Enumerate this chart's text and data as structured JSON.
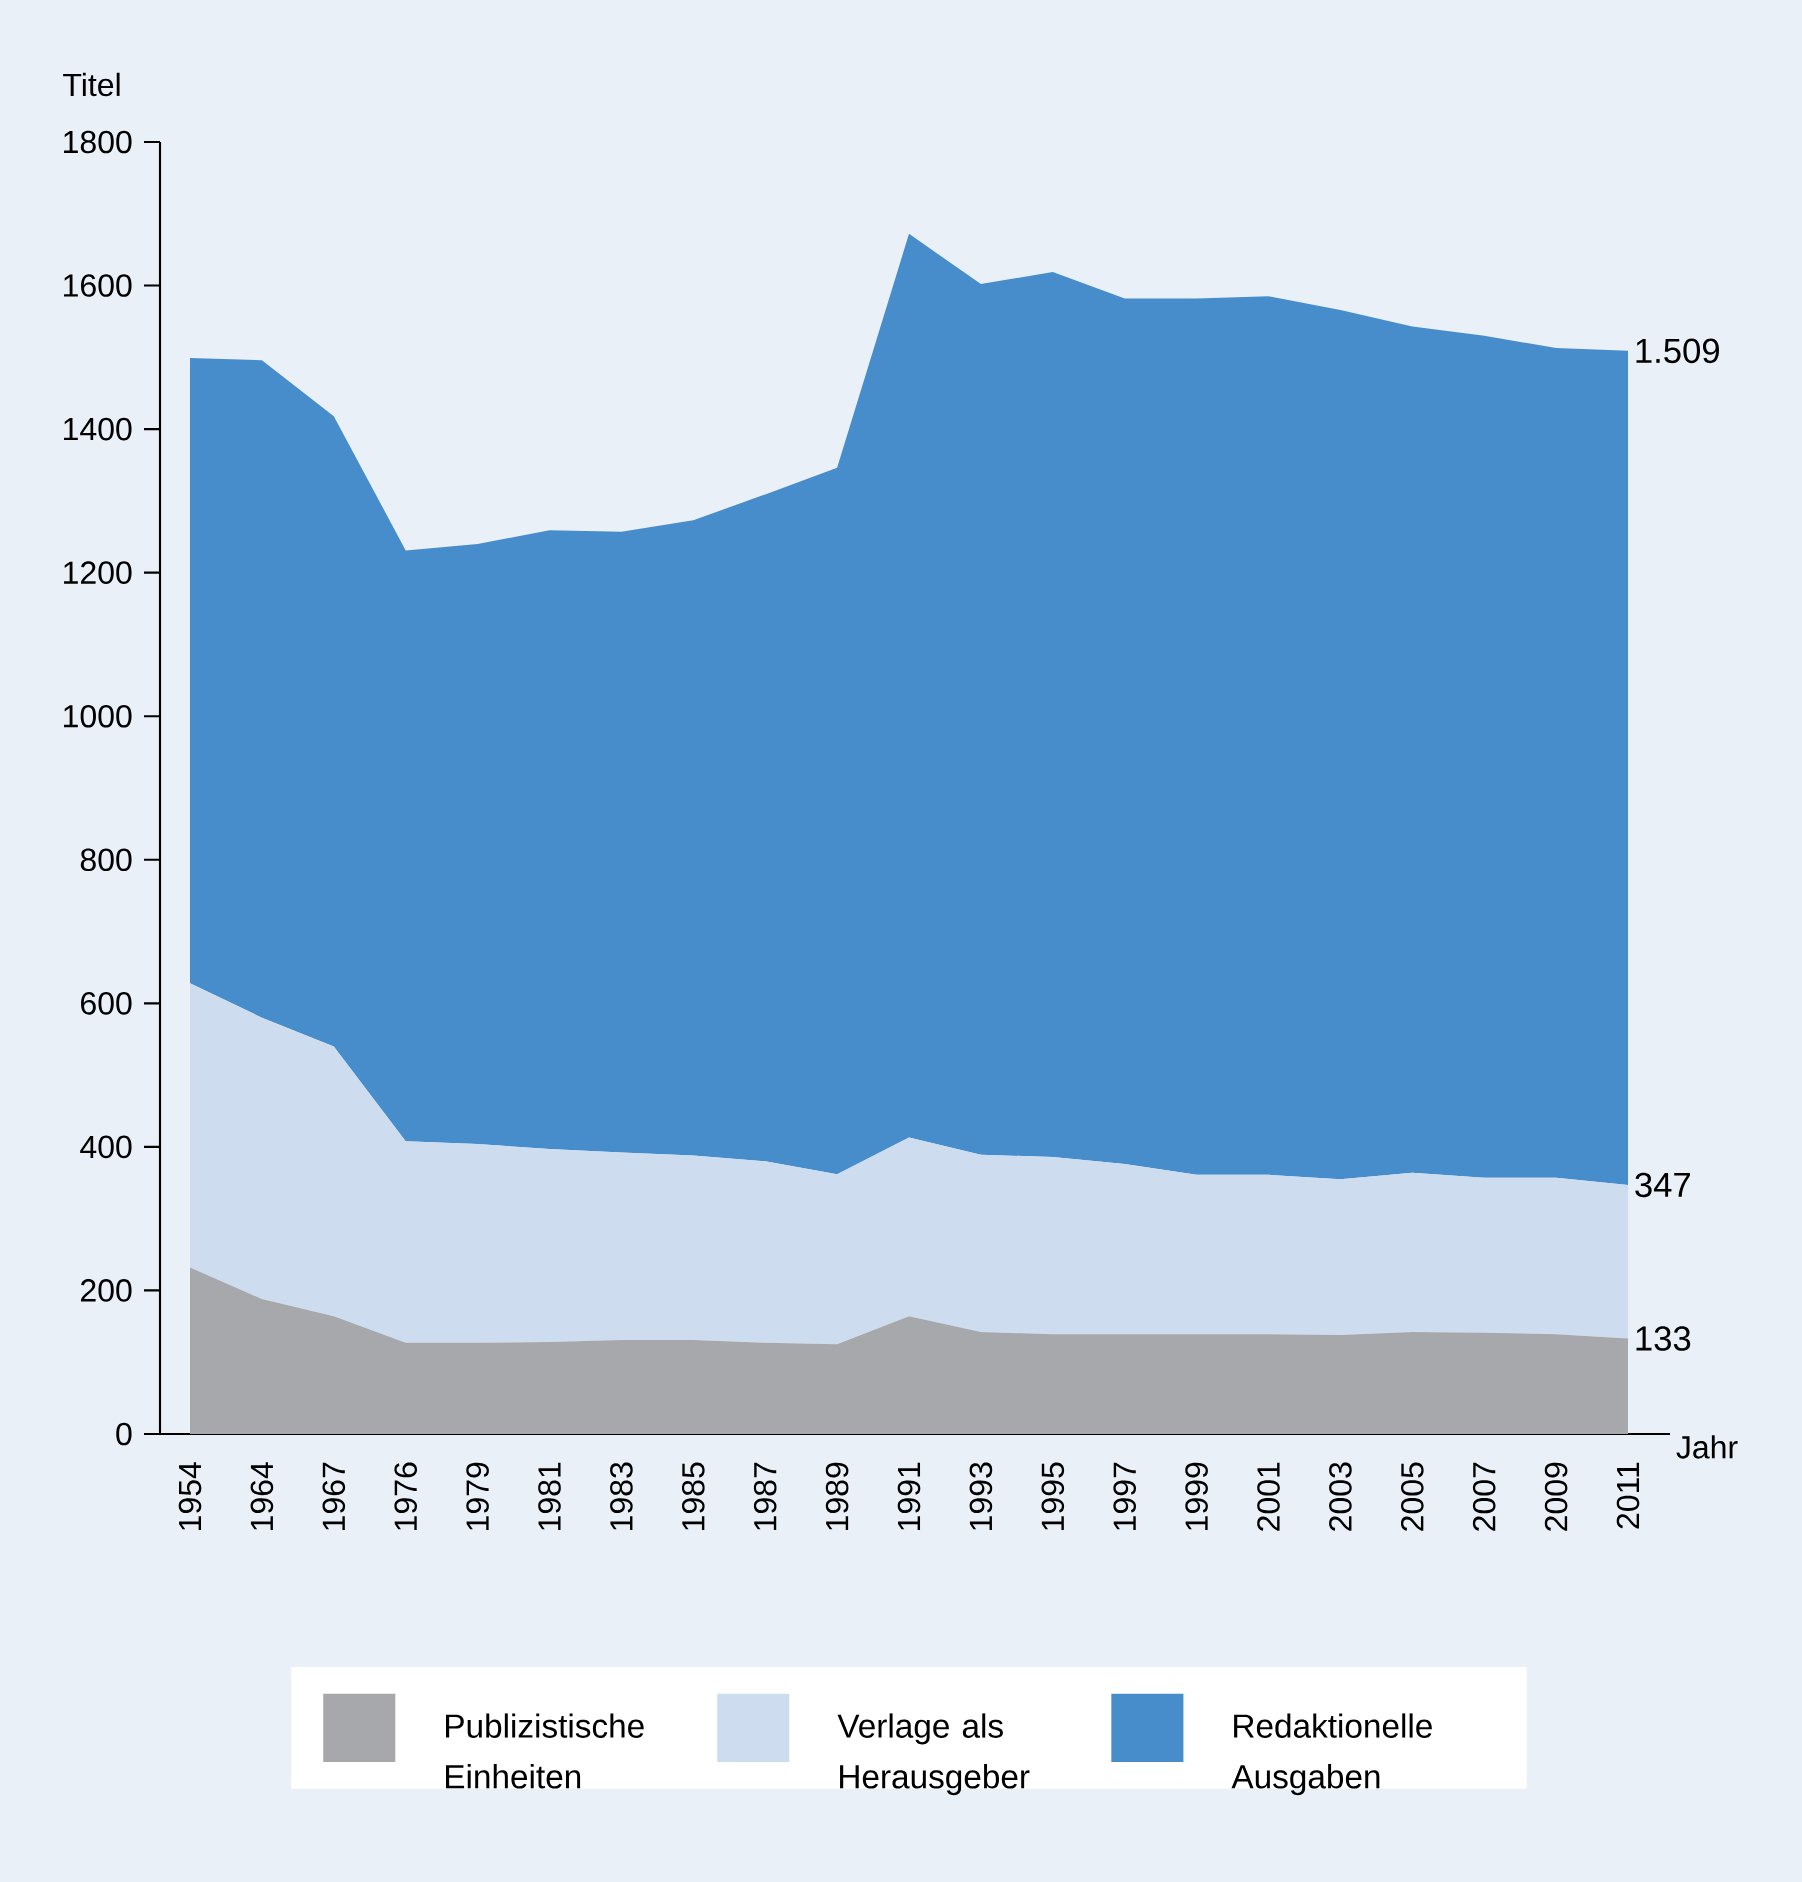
{
  "chart_data": {
    "type": "area",
    "ylabel": "Titel",
    "xlabel": "Jahr",
    "categories": [
      "1954",
      "1964",
      "1967",
      "1976",
      "1979",
      "1981",
      "1983",
      "1985",
      "1987",
      "1989",
      "1991",
      "1993",
      "1995",
      "1997",
      "1999",
      "2001",
      "2003",
      "2005",
      "2007",
      "2009",
      "2011"
    ],
    "series": [
      {
        "name": "Publizistische Einheiten",
        "color": "#a7a8ac",
        "values": [
          232,
          188,
          164,
          127,
          127,
          128,
          131,
          131,
          127,
          125,
          164,
          142,
          139,
          139,
          139,
          139,
          138,
          142,
          141,
          139,
          133
        ],
        "value_labels": [
          null,
          null,
          null,
          null,
          null,
          null,
          null,
          null,
          null,
          null,
          null,
          null,
          null,
          null,
          null,
          null,
          null,
          null,
          null,
          null,
          "133"
        ]
      },
      {
        "name": "Verlage als Herausgeber",
        "color": "#cddcee",
        "values": [
          628,
          580,
          540,
          408,
          404,
          397,
          392,
          388,
          380,
          362,
          413,
          389,
          386,
          376,
          361,
          361,
          355,
          364,
          357,
          357,
          347
        ],
        "value_labels": [
          null,
          null,
          null,
          null,
          null,
          null,
          null,
          null,
          null,
          null,
          null,
          null,
          null,
          null,
          null,
          null,
          null,
          null,
          null,
          null,
          "347"
        ]
      },
      {
        "name": "Redaktionelle Ausgaben",
        "color": "#478dcb",
        "values": [
          1499,
          1496,
          1418,
          1231,
          1240,
          1259,
          1257,
          1273,
          1309,
          1346,
          1672,
          1602,
          1619,
          1582,
          1582,
          1585,
          1566,
          1543,
          1530,
          1513,
          1509
        ],
        "value_labels": [
          null,
          null,
          null,
          null,
          null,
          null,
          null,
          null,
          null,
          null,
          null,
          null,
          null,
          null,
          null,
          null,
          null,
          null,
          null,
          null,
          "1.509"
        ]
      }
    ],
    "ylim": [
      0,
      1800
    ],
    "yticks": [
      0,
      200,
      400,
      600,
      800,
      1000,
      1200,
      1400,
      1600,
      1800
    ],
    "legend": "bottom"
  }
}
